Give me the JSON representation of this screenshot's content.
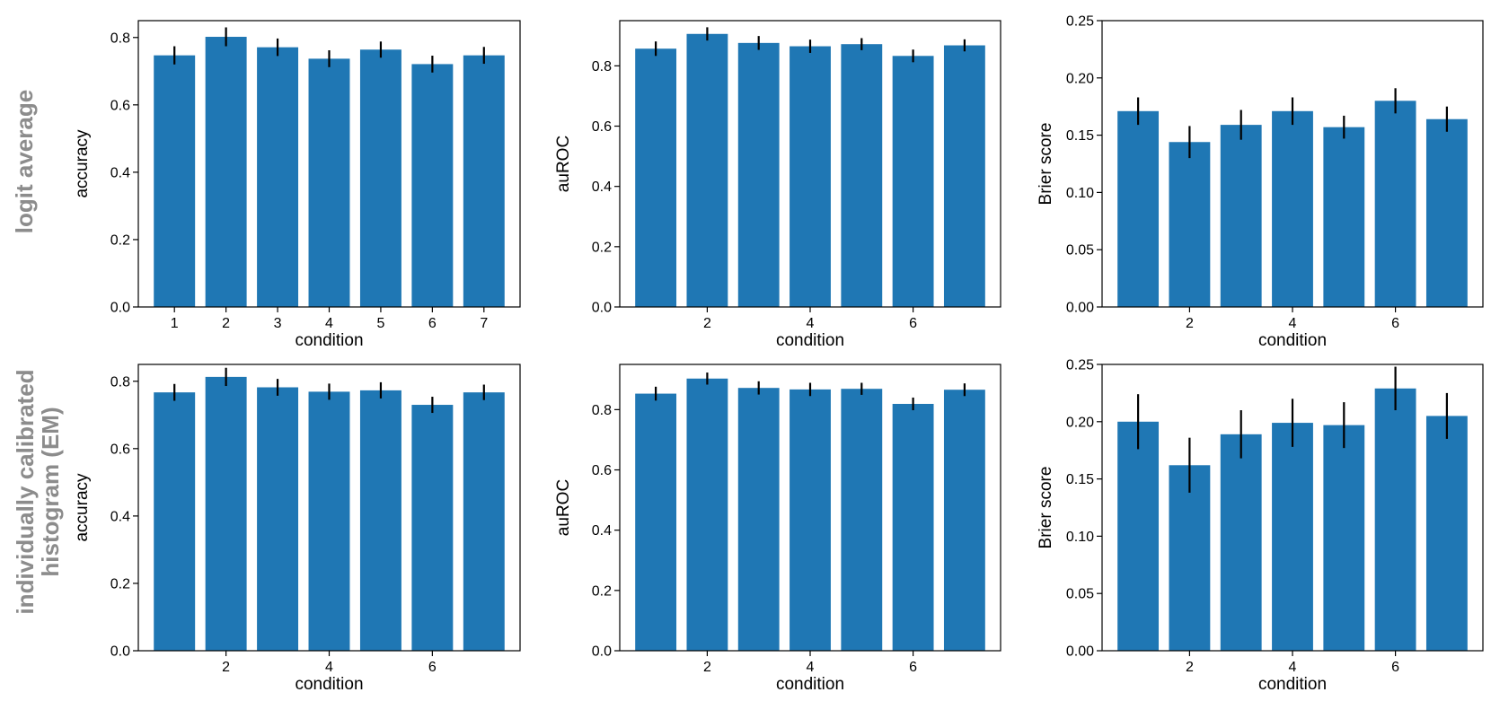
{
  "row_labels": [
    {
      "lines": [
        "logit average"
      ]
    },
    {
      "lines": [
        "individually calibrated",
        "histogram (EM)"
      ]
    }
  ],
  "chart_data": [
    {
      "type": "bar",
      "row": 0,
      "col": 0,
      "xlabel": "condition",
      "ylabel": "accuracy",
      "categories": [
        1,
        2,
        3,
        4,
        5,
        6,
        7
      ],
      "values": [
        0.747,
        0.802,
        0.771,
        0.737,
        0.764,
        0.721,
        0.747
      ],
      "errors": [
        0.027,
        0.028,
        0.026,
        0.025,
        0.024,
        0.025,
        0.025
      ],
      "ylim": [
        0,
        0.85
      ],
      "yticks": [
        "0.0",
        "0.2",
        "0.4",
        "0.6",
        "0.8"
      ],
      "xticks": [
        1,
        2,
        3,
        4,
        5,
        6,
        7
      ]
    },
    {
      "type": "bar",
      "row": 0,
      "col": 1,
      "xlabel": "condition",
      "ylabel": "auROC",
      "categories": [
        1,
        2,
        3,
        4,
        5,
        6,
        7
      ],
      "values": [
        0.857,
        0.906,
        0.876,
        0.865,
        0.872,
        0.833,
        0.868
      ],
      "errors": [
        0.024,
        0.022,
        0.023,
        0.022,
        0.02,
        0.021,
        0.02
      ],
      "ylim": [
        0,
        0.95
      ],
      "yticks": [
        "0.0",
        "0.2",
        "0.4",
        "0.6",
        "0.8"
      ],
      "xticks": [
        2,
        4,
        6
      ]
    },
    {
      "type": "bar",
      "row": 0,
      "col": 2,
      "xlabel": "condition",
      "ylabel": "Brier score",
      "categories": [
        1,
        2,
        3,
        4,
        5,
        6,
        7
      ],
      "values": [
        0.171,
        0.144,
        0.159,
        0.171,
        0.157,
        0.18,
        0.164
      ],
      "errors": [
        0.012,
        0.014,
        0.013,
        0.012,
        0.01,
        0.011,
        0.011
      ],
      "ylim": [
        0,
        0.25
      ],
      "yticks": [
        "0.00",
        "0.05",
        "0.10",
        "0.15",
        "0.20",
        "0.25"
      ],
      "xticks": [
        2,
        4,
        6
      ]
    },
    {
      "type": "bar",
      "row": 1,
      "col": 0,
      "xlabel": "condition",
      "ylabel": "accuracy",
      "categories": [
        1,
        2,
        3,
        4,
        5,
        6,
        7
      ],
      "values": [
        0.767,
        0.813,
        0.782,
        0.769,
        0.773,
        0.73,
        0.767
      ],
      "errors": [
        0.025,
        0.027,
        0.025,
        0.024,
        0.024,
        0.024,
        0.023
      ],
      "ylim": [
        0,
        0.85
      ],
      "yticks": [
        "0.0",
        "0.2",
        "0.4",
        "0.6",
        "0.8"
      ],
      "xticks": [
        2,
        4,
        6
      ]
    },
    {
      "type": "bar",
      "row": 1,
      "col": 1,
      "xlabel": "condition",
      "ylabel": "auROC",
      "categories": [
        1,
        2,
        3,
        4,
        5,
        6,
        7
      ],
      "values": [
        0.853,
        0.903,
        0.872,
        0.867,
        0.869,
        0.819,
        0.866
      ],
      "errors": [
        0.023,
        0.02,
        0.022,
        0.022,
        0.02,
        0.021,
        0.021
      ],
      "ylim": [
        0,
        0.95
      ],
      "yticks": [
        "0.0",
        "0.2",
        "0.4",
        "0.6",
        "0.8"
      ],
      "xticks": [
        2,
        4,
        6
      ]
    },
    {
      "type": "bar",
      "row": 1,
      "col": 2,
      "xlabel": "condition",
      "ylabel": "Brier score",
      "categories": [
        1,
        2,
        3,
        4,
        5,
        6,
        7
      ],
      "values": [
        0.2,
        0.162,
        0.189,
        0.199,
        0.197,
        0.229,
        0.205
      ],
      "errors": [
        0.024,
        0.024,
        0.021,
        0.021,
        0.02,
        0.019,
        0.02
      ],
      "ylim": [
        0,
        0.25
      ],
      "yticks": [
        "0.00",
        "0.05",
        "0.10",
        "0.15",
        "0.20",
        "0.25"
      ],
      "xticks": [
        2,
        4,
        6
      ]
    }
  ],
  "colors": {
    "bar": "#1f77b4",
    "error": "#000000",
    "axis": "#000000",
    "row_label": "#8c8c8c"
  }
}
